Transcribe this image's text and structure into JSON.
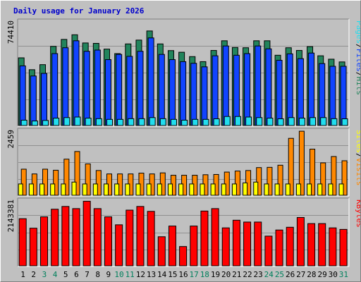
{
  "chart_data": [
    {
      "type": "bar",
      "title": "Daily usage for January 2026",
      "categories": [
        "1",
        "2",
        "3",
        "4",
        "5",
        "6",
        "7",
        "8",
        "9",
        "10",
        "11",
        "12",
        "13",
        "14",
        "15",
        "16",
        "17",
        "18",
        "19",
        "20",
        "21",
        "22",
        "23",
        "24",
        "25",
        "26",
        "27",
        "28",
        "29",
        "30",
        "31"
      ],
      "weekend_days": [
        3,
        4,
        10,
        11,
        17,
        18,
        24,
        25,
        31
      ],
      "ymax_label": "74410",
      "ylim": [
        0,
        74410
      ],
      "series": [
        {
          "name": "Hits",
          "color": "#22845c",
          "values": [
            49600,
            40900,
            44600,
            58000,
            63100,
            66500,
            60500,
            60200,
            56000,
            52700,
            59800,
            62600,
            69300,
            59800,
            54900,
            53700,
            50500,
            46800,
            55000,
            62100,
            57200,
            57000,
            62100,
            62100,
            51500,
            57000,
            55000,
            57800,
            51100,
            48600,
            46600
          ]
        },
        {
          "name": "Files",
          "color": "#1144ff",
          "values": [
            43700,
            36300,
            38200,
            52700,
            57000,
            62100,
            54400,
            55300,
            48300,
            52100,
            50700,
            54400,
            64200,
            52100,
            48300,
            46800,
            45600,
            43000,
            51100,
            58300,
            51500,
            52700,
            58300,
            56200,
            47800,
            52500,
            49000,
            53100,
            45400,
            43400,
            43400
          ]
        },
        {
          "name": "Pages",
          "color": "#22ddee",
          "values": [
            3900,
            3300,
            3700,
            5400,
            5800,
            6200,
            5400,
            5000,
            4500,
            4500,
            5000,
            5000,
            5800,
            5000,
            4500,
            3900,
            4500,
            4500,
            4900,
            6600,
            6600,
            6200,
            5800,
            5400,
            4900,
            5800,
            5400,
            5800,
            5800,
            5000,
            4900
          ]
        }
      ],
      "right_legend": [
        "Pages",
        "/",
        "Files",
        "/",
        "Hits"
      ]
    },
    {
      "type": "bar",
      "ymax_label": "2459",
      "ylim": [
        0,
        2459
      ],
      "series": [
        {
          "name": "Visits",
          "color": "#ff8800",
          "values": [
            990,
            810,
            990,
            950,
            1370,
            1660,
            1190,
            940,
            810,
            810,
            810,
            840,
            810,
            850,
            760,
            760,
            760,
            780,
            790,
            880,
            920,
            940,
            1050,
            1060,
            1140,
            2160,
            2430,
            1750,
            1230,
            1470,
            1310
          ]
        },
        {
          "name": "Sites",
          "color": "#ffff00",
          "values": [
            430,
            430,
            430,
            430,
            430,
            500,
            430,
            430,
            430,
            430,
            430,
            430,
            430,
            430,
            430,
            430,
            430,
            430,
            430,
            430,
            430,
            470,
            500,
            430,
            430,
            430,
            430,
            430,
            430,
            430,
            430
          ]
        }
      ],
      "right_legend": [
        "Sites",
        "/",
        "Visits"
      ]
    },
    {
      "type": "bar",
      "ymax_label": "2143381",
      "ylim": [
        0,
        2143381
      ],
      "series": [
        {
          "name": "KBytes",
          "color": "#ff0000",
          "values": [
            1540000,
            1230000,
            1600000,
            1850000,
            1940000,
            1870000,
            2110000,
            1870000,
            1600000,
            1340000,
            1820000,
            1940000,
            1780000,
            950000,
            1300000,
            630000,
            1300000,
            1790000,
            1870000,
            1240000,
            1490000,
            1430000,
            1430000,
            970000,
            1170000,
            1260000,
            1580000,
            1380000,
            1380000,
            1240000,
            1190000
          ]
        }
      ],
      "right_legend": [
        "KBytes"
      ]
    }
  ],
  "colors": {
    "background": "#c0c0c0",
    "weekday_label": "#000000",
    "weekend_label": "#00805c",
    "slash": "#000000"
  }
}
